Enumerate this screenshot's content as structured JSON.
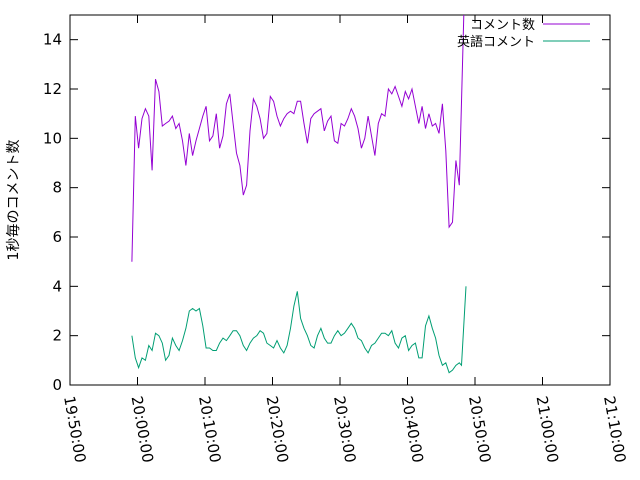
{
  "chart_data": {
    "type": "line",
    "title": "",
    "xlabel": "",
    "ylabel": "1秒毎のコメント数",
    "x_axis": {
      "ticks": [
        "19:50:00",
        "20:00:00",
        "20:10:00",
        "20:20:00",
        "20:30:00",
        "20:40:00",
        "20:50:00",
        "21:00:00",
        "21:10:00"
      ],
      "range": [
        "19:50:00",
        "21:10:00"
      ]
    },
    "y_axis": {
      "ticks": [
        0,
        2,
        4,
        6,
        8,
        10,
        12,
        14
      ],
      "range": [
        0,
        15
      ]
    },
    "grid": false,
    "legend_position": "top-right",
    "series": [
      {
        "name": "コメント数",
        "color": "#9400d3",
        "points": [
          [
            "19:59:10",
            5.0
          ],
          [
            "19:59:40",
            10.9
          ],
          [
            "20:00:10",
            9.6
          ],
          [
            "20:00:40",
            10.8
          ],
          [
            "20:01:10",
            11.2
          ],
          [
            "20:01:40",
            10.9
          ],
          [
            "20:02:10",
            8.7
          ],
          [
            "20:02:40",
            12.4
          ],
          [
            "20:03:10",
            11.9
          ],
          [
            "20:03:40",
            10.5
          ],
          [
            "20:04:10",
            10.6
          ],
          [
            "20:04:40",
            10.7
          ],
          [
            "20:05:10",
            10.9
          ],
          [
            "20:05:40",
            10.4
          ],
          [
            "20:06:10",
            10.6
          ],
          [
            "20:06:40",
            9.9
          ],
          [
            "20:07:10",
            8.9
          ],
          [
            "20:07:40",
            10.2
          ],
          [
            "20:08:10",
            9.3
          ],
          [
            "20:08:40",
            9.9
          ],
          [
            "20:09:10",
            10.4
          ],
          [
            "20:09:40",
            10.9
          ],
          [
            "20:10:10",
            11.3
          ],
          [
            "20:10:40",
            9.9
          ],
          [
            "20:11:10",
            10.1
          ],
          [
            "20:11:40",
            11.0
          ],
          [
            "20:12:10",
            9.6
          ],
          [
            "20:12:40",
            10.1
          ],
          [
            "20:13:10",
            11.4
          ],
          [
            "20:13:40",
            11.8
          ],
          [
            "20:14:10",
            10.6
          ],
          [
            "20:14:40",
            9.4
          ],
          [
            "20:15:10",
            8.9
          ],
          [
            "20:15:40",
            7.7
          ],
          [
            "20:16:10",
            8.1
          ],
          [
            "20:16:40",
            10.3
          ],
          [
            "20:17:10",
            11.6
          ],
          [
            "20:17:40",
            11.3
          ],
          [
            "20:18:10",
            10.8
          ],
          [
            "20:18:40",
            10.0
          ],
          [
            "20:19:10",
            10.2
          ],
          [
            "20:19:40",
            11.7
          ],
          [
            "20:20:10",
            11.5
          ],
          [
            "20:20:40",
            10.9
          ],
          [
            "20:21:10",
            10.5
          ],
          [
            "20:21:40",
            10.8
          ],
          [
            "20:22:10",
            11.0
          ],
          [
            "20:22:40",
            11.1
          ],
          [
            "20:23:10",
            11.0
          ],
          [
            "20:23:40",
            11.5
          ],
          [
            "20:24:10",
            11.5
          ],
          [
            "20:24:40",
            10.6
          ],
          [
            "20:25:10",
            9.8
          ],
          [
            "20:25:40",
            10.8
          ],
          [
            "20:26:10",
            11.0
          ],
          [
            "20:26:40",
            11.1
          ],
          [
            "20:27:10",
            11.2
          ],
          [
            "20:27:40",
            10.3
          ],
          [
            "20:28:10",
            10.7
          ],
          [
            "20:28:40",
            10.9
          ],
          [
            "20:29:10",
            9.9
          ],
          [
            "20:29:40",
            9.8
          ],
          [
            "20:30:10",
            10.6
          ],
          [
            "20:30:40",
            10.5
          ],
          [
            "20:31:10",
            10.8
          ],
          [
            "20:31:40",
            11.2
          ],
          [
            "20:32:10",
            10.9
          ],
          [
            "20:32:40",
            10.4
          ],
          [
            "20:33:10",
            9.6
          ],
          [
            "20:33:40",
            10.0
          ],
          [
            "20:34:10",
            10.9
          ],
          [
            "20:34:40",
            10.1
          ],
          [
            "20:35:10",
            9.3
          ],
          [
            "20:35:40",
            10.6
          ],
          [
            "20:36:10",
            11.0
          ],
          [
            "20:36:40",
            10.9
          ],
          [
            "20:37:10",
            12.0
          ],
          [
            "20:37:40",
            11.8
          ],
          [
            "20:38:10",
            12.1
          ],
          [
            "20:38:40",
            11.7
          ],
          [
            "20:39:10",
            11.3
          ],
          [
            "20:39:40",
            11.9
          ],
          [
            "20:40:10",
            11.6
          ],
          [
            "20:40:40",
            12.0
          ],
          [
            "20:41:10",
            11.3
          ],
          [
            "20:41:40",
            10.6
          ],
          [
            "20:42:10",
            11.3
          ],
          [
            "20:42:40",
            10.4
          ],
          [
            "20:43:10",
            11.0
          ],
          [
            "20:43:40",
            10.5
          ],
          [
            "20:44:10",
            10.6
          ],
          [
            "20:44:40",
            10.2
          ],
          [
            "20:45:10",
            11.4
          ],
          [
            "20:45:40",
            9.5
          ],
          [
            "20:46:10",
            6.4
          ],
          [
            "20:46:40",
            6.6
          ],
          [
            "20:47:10",
            9.1
          ],
          [
            "20:47:40",
            8.1
          ],
          [
            "20:48:20",
            15.0
          ]
        ]
      },
      {
        "name": "英語コメント",
        "color": "#009e73",
        "points": [
          [
            "19:59:10",
            2.0
          ],
          [
            "19:59:40",
            1.1
          ],
          [
            "20:00:10",
            0.7
          ],
          [
            "20:00:40",
            1.1
          ],
          [
            "20:01:10",
            1.0
          ],
          [
            "20:01:40",
            1.6
          ],
          [
            "20:02:10",
            1.4
          ],
          [
            "20:02:40",
            2.1
          ],
          [
            "20:03:10",
            2.0
          ],
          [
            "20:03:40",
            1.7
          ],
          [
            "20:04:10",
            1.0
          ],
          [
            "20:04:40",
            1.2
          ],
          [
            "20:05:10",
            1.9
          ],
          [
            "20:05:40",
            1.6
          ],
          [
            "20:06:10",
            1.4
          ],
          [
            "20:06:40",
            1.8
          ],
          [
            "20:07:10",
            2.3
          ],
          [
            "20:07:40",
            3.0
          ],
          [
            "20:08:10",
            3.1
          ],
          [
            "20:08:40",
            3.0
          ],
          [
            "20:09:10",
            3.1
          ],
          [
            "20:09:40",
            2.4
          ],
          [
            "20:10:10",
            1.5
          ],
          [
            "20:10:40",
            1.5
          ],
          [
            "20:11:10",
            1.4
          ],
          [
            "20:11:40",
            1.4
          ],
          [
            "20:12:10",
            1.7
          ],
          [
            "20:12:40",
            1.9
          ],
          [
            "20:13:10",
            1.8
          ],
          [
            "20:13:40",
            2.0
          ],
          [
            "20:14:10",
            2.2
          ],
          [
            "20:14:40",
            2.2
          ],
          [
            "20:15:10",
            2.0
          ],
          [
            "20:15:40",
            1.6
          ],
          [
            "20:16:10",
            1.4
          ],
          [
            "20:16:40",
            1.7
          ],
          [
            "20:17:10",
            1.9
          ],
          [
            "20:17:40",
            2.0
          ],
          [
            "20:18:10",
            2.2
          ],
          [
            "20:18:40",
            2.1
          ],
          [
            "20:19:10",
            1.7
          ],
          [
            "20:19:40",
            1.6
          ],
          [
            "20:20:10",
            1.5
          ],
          [
            "20:20:40",
            1.8
          ],
          [
            "20:21:10",
            1.5
          ],
          [
            "20:21:40",
            1.3
          ],
          [
            "20:22:10",
            1.6
          ],
          [
            "20:22:40",
            2.3
          ],
          [
            "20:23:10",
            3.2
          ],
          [
            "20:23:40",
            3.8
          ],
          [
            "20:24:10",
            2.7
          ],
          [
            "20:24:40",
            2.3
          ],
          [
            "20:25:10",
            2.0
          ],
          [
            "20:25:40",
            1.6
          ],
          [
            "20:26:10",
            1.5
          ],
          [
            "20:26:40",
            2.0
          ],
          [
            "20:27:10",
            2.3
          ],
          [
            "20:27:40",
            1.9
          ],
          [
            "20:28:10",
            1.7
          ],
          [
            "20:28:40",
            1.7
          ],
          [
            "20:29:10",
            2.0
          ],
          [
            "20:29:40",
            2.2
          ],
          [
            "20:30:10",
            2.0
          ],
          [
            "20:30:40",
            2.1
          ],
          [
            "20:31:10",
            2.3
          ],
          [
            "20:31:40",
            2.5
          ],
          [
            "20:32:10",
            2.3
          ],
          [
            "20:32:40",
            1.9
          ],
          [
            "20:33:10",
            1.8
          ],
          [
            "20:33:40",
            1.5
          ],
          [
            "20:34:10",
            1.3
          ],
          [
            "20:34:40",
            1.6
          ],
          [
            "20:35:10",
            1.7
          ],
          [
            "20:35:40",
            1.9
          ],
          [
            "20:36:10",
            2.1
          ],
          [
            "20:36:40",
            2.1
          ],
          [
            "20:37:10",
            2.0
          ],
          [
            "20:37:40",
            2.2
          ],
          [
            "20:38:10",
            1.7
          ],
          [
            "20:38:40",
            1.5
          ],
          [
            "20:39:10",
            1.9
          ],
          [
            "20:39:40",
            2.0
          ],
          [
            "20:40:10",
            1.4
          ],
          [
            "20:40:40",
            1.6
          ],
          [
            "20:41:10",
            1.7
          ],
          [
            "20:41:40",
            1.1
          ],
          [
            "20:42:10",
            1.1
          ],
          [
            "20:42:40",
            2.4
          ],
          [
            "20:43:10",
            2.8
          ],
          [
            "20:43:40",
            2.3
          ],
          [
            "20:44:10",
            1.9
          ],
          [
            "20:44:40",
            1.2
          ],
          [
            "20:45:10",
            0.8
          ],
          [
            "20:45:40",
            0.9
          ],
          [
            "20:46:10",
            0.5
          ],
          [
            "20:46:40",
            0.6
          ],
          [
            "20:47:10",
            0.8
          ],
          [
            "20:47:40",
            0.9
          ],
          [
            "20:48:00",
            0.8
          ],
          [
            "20:48:40",
            4.0
          ]
        ]
      }
    ]
  }
}
